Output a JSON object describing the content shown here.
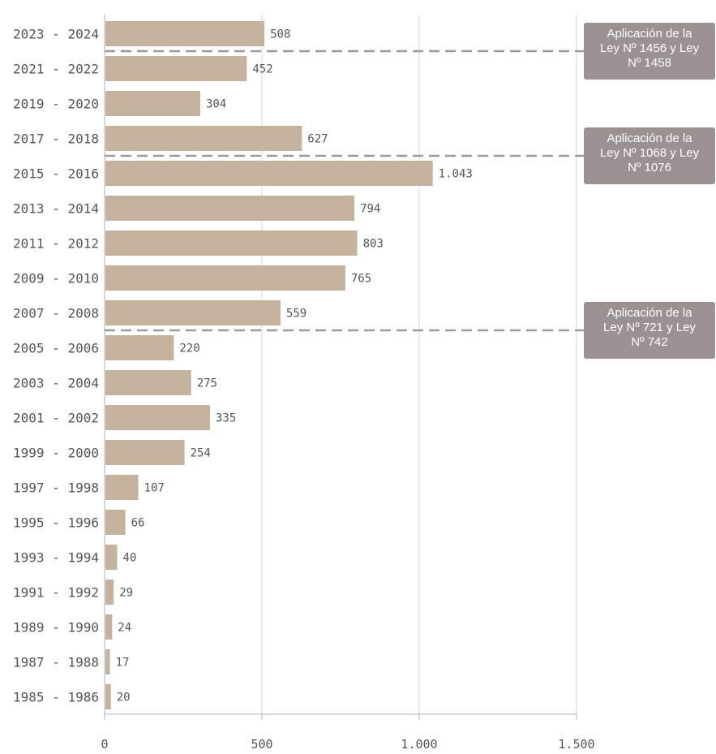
{
  "chart_data": {
    "type": "bar",
    "orientation": "horizontal",
    "categories": [
      "2023 - 2024",
      "2021 - 2022",
      "2019 - 2020",
      "2017 - 2018",
      "2015 - 2016",
      "2013 - 2014",
      "2011 - 2012",
      "2009 - 2010",
      "2007 - 2008",
      "2005 - 2006",
      "2003 - 2004",
      "2001 - 2002",
      "1999 - 2000",
      "1997 - 1998",
      "1995 - 1996",
      "1993 - 1994",
      "1991 - 1992",
      "1989 - 1990",
      "1987 - 1988",
      "1985 - 1986"
    ],
    "values": [
      508,
      452,
      304,
      627,
      1043,
      794,
      803,
      765,
      559,
      220,
      275,
      335,
      254,
      107,
      66,
      40,
      29,
      24,
      17,
      20
    ],
    "value_labels": [
      "508",
      "452",
      "304",
      "627",
      "1.043",
      "794",
      "803",
      "765",
      "559",
      "220",
      "275",
      "335",
      "254",
      "107",
      "66",
      "40",
      "29",
      "24",
      "17",
      "20"
    ],
    "xlim": [
      0,
      1500
    ],
    "xticks": [
      0,
      500,
      1000,
      1500
    ],
    "xtick_labels": [
      "0",
      "500",
      "1.000",
      "1.500"
    ],
    "grid": "vertical",
    "bar_color": "#c4b29c",
    "annotations": [
      {
        "after_category": "2023 - 2024",
        "lines": [
          "Aplicación de la",
          "Ley Nº 1456 y Ley",
          "Nº 1458"
        ]
      },
      {
        "after_category": "2017 - 2018",
        "lines": [
          "Aplicación de la",
          "Ley Nº 1068 y Ley",
          "Nº 1076"
        ]
      },
      {
        "after_category": "2007 - 2008",
        "lines": [
          "Aplicación de la",
          "Ley Nº 721 y Ley",
          "Nº 742"
        ]
      }
    ],
    "annotation_color": "#9b9190",
    "line_color": "#9a9a9a"
  }
}
